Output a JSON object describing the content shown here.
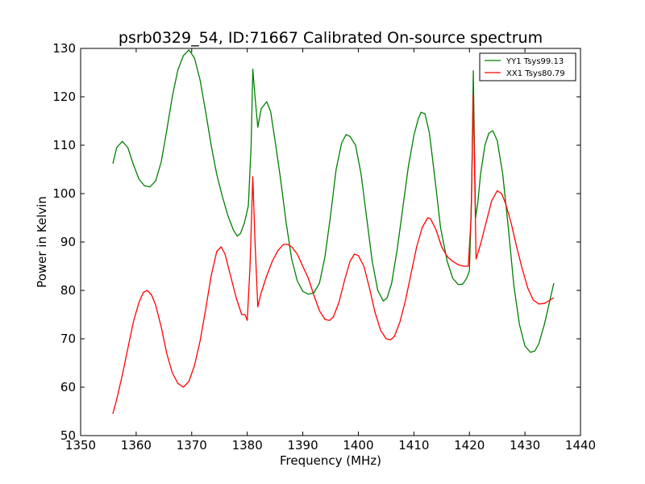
{
  "chart_data": {
    "type": "line",
    "title": "psrb0329_54, ID:71667 Calibrated On-source spectrum",
    "xlabel": "Frequency (MHz)",
    "ylabel": "Power in Kelvin",
    "xlim": [
      1350,
      1440
    ],
    "ylim": [
      50,
      130
    ],
    "xticks": [
      "1350",
      "1360",
      "1370",
      "1380",
      "1390",
      "1400",
      "1410",
      "1420",
      "1430",
      "1440"
    ],
    "yticks": [
      "50",
      "60",
      "70",
      "80",
      "90",
      "100",
      "110",
      "120",
      "130"
    ],
    "grid": false,
    "legend_position": "top-right",
    "series": [
      {
        "name": "YY1 Tsys99.13",
        "color": "#008000",
        "points": [
          [
            1355.8,
            106.2
          ],
          [
            1356.5,
            109.5
          ],
          [
            1357.5,
            110.8
          ],
          [
            1358.5,
            109.5
          ],
          [
            1359.5,
            106.0
          ],
          [
            1360.5,
            103.0
          ],
          [
            1361.5,
            101.6
          ],
          [
            1362.5,
            101.4
          ],
          [
            1363.5,
            102.6
          ],
          [
            1364.5,
            106.5
          ],
          [
            1365.5,
            113.0
          ],
          [
            1366.5,
            120.0
          ],
          [
            1367.5,
            125.5
          ],
          [
            1368.5,
            128.5
          ],
          [
            1369.5,
            129.7
          ],
          [
            1370.5,
            128.0
          ],
          [
            1371.5,
            123.5
          ],
          [
            1372.5,
            117.0
          ],
          [
            1373.5,
            110.0
          ],
          [
            1374.5,
            104.0
          ],
          [
            1375.5,
            99.5
          ],
          [
            1376.5,
            95.5
          ],
          [
            1377.5,
            92.5
          ],
          [
            1378.2,
            91.2
          ],
          [
            1378.8,
            91.8
          ],
          [
            1379.5,
            94.0
          ],
          [
            1380.2,
            97.5
          ],
          [
            1380.7,
            110.0
          ],
          [
            1381.0,
            125.7
          ],
          [
            1381.4,
            120.0
          ],
          [
            1381.9,
            113.7
          ],
          [
            1382.5,
            117.5
          ],
          [
            1383.5,
            119.0
          ],
          [
            1384.2,
            117.0
          ],
          [
            1385.0,
            111.0
          ],
          [
            1386.0,
            103.0
          ],
          [
            1387.0,
            94.0
          ],
          [
            1388.0,
            86.5
          ],
          [
            1389.0,
            82.0
          ],
          [
            1390.0,
            79.8
          ],
          [
            1391.0,
            79.2
          ],
          [
            1392.0,
            79.5
          ],
          [
            1393.0,
            81.5
          ],
          [
            1394.0,
            87.0
          ],
          [
            1395.0,
            95.5
          ],
          [
            1396.0,
            105.0
          ],
          [
            1397.0,
            110.5
          ],
          [
            1397.8,
            112.2
          ],
          [
            1398.5,
            111.8
          ],
          [
            1399.5,
            110.0
          ],
          [
            1400.5,
            104.0
          ],
          [
            1401.5,
            95.0
          ],
          [
            1402.5,
            86.0
          ],
          [
            1403.5,
            80.0
          ],
          [
            1404.5,
            77.8
          ],
          [
            1405.2,
            78.5
          ],
          [
            1406.0,
            81.5
          ],
          [
            1407.0,
            88.5
          ],
          [
            1408.0,
            97.0
          ],
          [
            1409.0,
            105.5
          ],
          [
            1410.0,
            112.0
          ],
          [
            1410.8,
            115.5
          ],
          [
            1411.3,
            116.8
          ],
          [
            1412.0,
            116.5
          ],
          [
            1412.8,
            112.5
          ],
          [
            1413.8,
            103.0
          ],
          [
            1414.8,
            93.0
          ],
          [
            1416.0,
            86.0
          ],
          [
            1417.0,
            82.5
          ],
          [
            1418.0,
            81.2
          ],
          [
            1418.8,
            81.3
          ],
          [
            1419.5,
            82.5
          ],
          [
            1420.0,
            84.0
          ],
          [
            1420.4,
            100.0
          ],
          [
            1420.7,
            125.4
          ],
          [
            1421.1,
            95.0
          ],
          [
            1421.5,
            98.0
          ],
          [
            1422.0,
            104.0
          ],
          [
            1422.8,
            110.0
          ],
          [
            1423.5,
            112.5
          ],
          [
            1424.2,
            113.0
          ],
          [
            1425.0,
            111.0
          ],
          [
            1426.0,
            104.0
          ],
          [
            1427.0,
            93.0
          ],
          [
            1428.0,
            81.0
          ],
          [
            1429.0,
            73.0
          ],
          [
            1430.0,
            68.5
          ],
          [
            1431.0,
            67.2
          ],
          [
            1431.8,
            67.5
          ],
          [
            1432.5,
            69.0
          ],
          [
            1433.5,
            73.0
          ],
          [
            1434.5,
            78.0
          ],
          [
            1435.2,
            81.5
          ]
        ]
      },
      {
        "name": "XX1 Tsys80.79",
        "color": "#ff0000",
        "points": [
          [
            1355.8,
            54.5
          ],
          [
            1356.5,
            57.5
          ],
          [
            1357.5,
            62.5
          ],
          [
            1358.5,
            68.0
          ],
          [
            1359.5,
            73.5
          ],
          [
            1360.5,
            77.5
          ],
          [
            1361.3,
            79.6
          ],
          [
            1362.0,
            80.0
          ],
          [
            1362.8,
            79.0
          ],
          [
            1363.5,
            77.0
          ],
          [
            1364.5,
            72.5
          ],
          [
            1365.5,
            67.0
          ],
          [
            1366.5,
            63.0
          ],
          [
            1367.5,
            60.8
          ],
          [
            1368.5,
            60.0
          ],
          [
            1369.5,
            61.2
          ],
          [
            1370.5,
            64.5
          ],
          [
            1371.5,
            69.5
          ],
          [
            1372.5,
            76.0
          ],
          [
            1373.5,
            83.0
          ],
          [
            1374.5,
            88.0
          ],
          [
            1375.3,
            89.0
          ],
          [
            1376.0,
            87.5
          ],
          [
            1377.0,
            83.0
          ],
          [
            1378.0,
            78.5
          ],
          [
            1379.0,
            75.0
          ],
          [
            1379.6,
            75.0
          ],
          [
            1380.0,
            73.8
          ],
          [
            1380.5,
            85.0
          ],
          [
            1381.0,
            103.5
          ],
          [
            1381.4,
            90.0
          ],
          [
            1381.9,
            76.6
          ],
          [
            1382.5,
            79.5
          ],
          [
            1383.5,
            83.0
          ],
          [
            1384.5,
            86.0
          ],
          [
            1385.5,
            88.2
          ],
          [
            1386.5,
            89.5
          ],
          [
            1387.3,
            89.5
          ],
          [
            1388.0,
            89.0
          ],
          [
            1389.0,
            87.5
          ],
          [
            1390.0,
            85.0
          ],
          [
            1391.0,
            82.5
          ],
          [
            1392.0,
            79.0
          ],
          [
            1393.0,
            75.8
          ],
          [
            1394.0,
            74.0
          ],
          [
            1394.8,
            73.8
          ],
          [
            1395.5,
            74.5
          ],
          [
            1396.5,
            77.5
          ],
          [
            1397.5,
            82.0
          ],
          [
            1398.5,
            86.0
          ],
          [
            1399.3,
            87.5
          ],
          [
            1400.0,
            87.2
          ],
          [
            1401.0,
            85.0
          ],
          [
            1402.0,
            80.5
          ],
          [
            1403.0,
            75.5
          ],
          [
            1404.0,
            71.8
          ],
          [
            1405.0,
            70.0
          ],
          [
            1405.8,
            69.8
          ],
          [
            1406.5,
            70.5
          ],
          [
            1407.5,
            73.5
          ],
          [
            1408.5,
            78.0
          ],
          [
            1409.5,
            83.5
          ],
          [
            1410.5,
            89.0
          ],
          [
            1411.5,
            93.0
          ],
          [
            1412.5,
            95.0
          ],
          [
            1413.0,
            94.8
          ],
          [
            1414.0,
            92.5
          ],
          [
            1415.0,
            89.0
          ],
          [
            1416.0,
            87.0
          ],
          [
            1417.0,
            86.0
          ],
          [
            1418.0,
            85.3
          ],
          [
            1419.0,
            85.0
          ],
          [
            1419.8,
            85.0
          ],
          [
            1420.3,
            95.0
          ],
          [
            1420.7,
            120.5
          ],
          [
            1421.2,
            86.5
          ],
          [
            1422.0,
            89.5
          ],
          [
            1423.0,
            94.0
          ],
          [
            1424.0,
            98.5
          ],
          [
            1425.0,
            100.6
          ],
          [
            1425.8,
            100.0
          ],
          [
            1426.5,
            98.0
          ],
          [
            1427.5,
            94.0
          ],
          [
            1428.5,
            89.0
          ],
          [
            1429.5,
            84.5
          ],
          [
            1430.5,
            80.5
          ],
          [
            1431.5,
            78.0
          ],
          [
            1432.5,
            77.2
          ],
          [
            1433.5,
            77.3
          ],
          [
            1434.5,
            78.0
          ],
          [
            1435.2,
            78.5
          ]
        ]
      }
    ]
  }
}
